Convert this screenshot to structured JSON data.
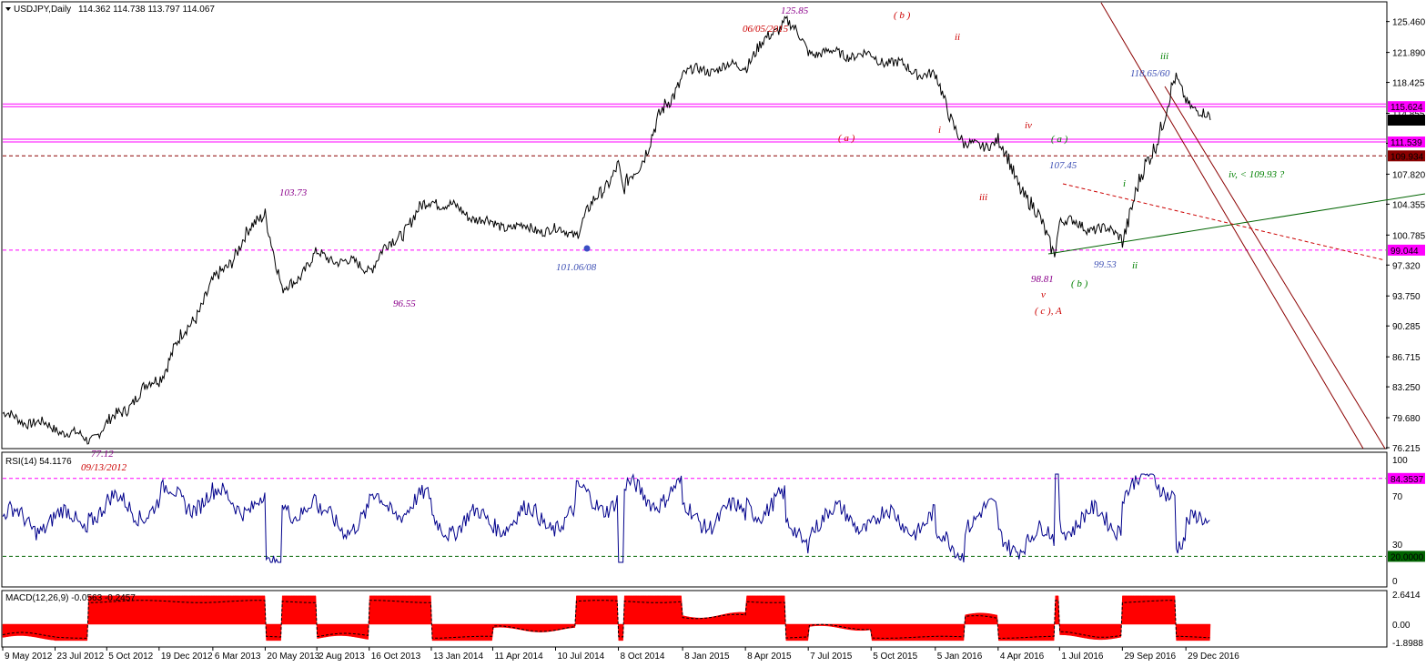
{
  "header": {
    "symbol_label": "USDJPY,Daily",
    "ohlc": "114.362 114.738 113.797 114.067"
  },
  "colors": {
    "price": "#000000",
    "rsi": "#00008b",
    "macd_fill": "#ff0000",
    "magenta": "#ff00ff",
    "darkred": "#8b0000",
    "green": "#006400"
  },
  "chart_data": [
    {
      "type": "line",
      "title": "USDJPY,Daily",
      "ylim": [
        76.215,
        127.0
      ],
      "yticks": [
        "125.460",
        "121.890",
        "118.425",
        "114.855",
        "111.390",
        "107.820",
        "104.355",
        "100.785",
        "97.320",
        "93.750",
        "90.285",
        "86.715",
        "83.250",
        "79.680",
        "76.215"
      ],
      "xticks": [
        "9 May 2012",
        "23 Jul 2012",
        "5 Oct 2012",
        "19 Dec 2012",
        "6 Mar 2013",
        "20 May 2013",
        "2 Aug 2013",
        "16 Oct 2013",
        "13 Jan 2014",
        "11 Apr 2014",
        "10 Jul 2014",
        "8 Oct 2014",
        "8 Jan 2015",
        "8 Apr 2015",
        "7 Jul 2015",
        "5 Oct 2015",
        "5 Jan 2016",
        "4 Apr 2016",
        "1 Jul 2016",
        "29 Sep 2016",
        "29 Dec 2016"
      ],
      "series": [
        {
          "x": [
            "9 May 2012",
            "23 Jul 2012",
            "9 Sep 2012",
            "5 Oct 2012",
            "19 Dec 2012",
            "6 Mar 2013",
            "20 May 2013",
            "13 Jun 2013",
            "2 Aug 2013",
            "16 Oct 2013",
            "13 Jan 2014",
            "11 Apr 2014",
            "8 Aug 2014",
            "8 Oct 2014",
            "15 Oct 2014",
            "8 Jan 2015",
            "8 Apr 2015",
            "5 Jun 2015",
            "7 Jul 2015",
            "5 Oct 2015",
            "5 Jan 2016",
            "15 Feb 2016",
            "4 Apr 2016",
            "24 Jun 2016",
            "1 Jul 2016",
            "29 Sep 2016",
            "15 Dec 2016",
            "29 Dec 2016",
            "2 Feb 2017"
          ],
          "values": [
            80.0,
            78.5,
            77.12,
            78.8,
            84.5,
            95.0,
            103.73,
            94.0,
            98.5,
            97.0,
            105.0,
            102.0,
            101.06,
            109.0,
            105.5,
            119.5,
            120.5,
            125.85,
            122.0,
            121.5,
            119.0,
            111.0,
            111.5,
            99.0,
            102.5,
            100.8,
            118.65,
            116.5,
            114.067
          ]
        }
      ],
      "horizontal_levels": [
        {
          "value": 115.624,
          "label": "115.624",
          "color": "#ff00ff",
          "style": "solid"
        },
        {
          "value": 114.067,
          "label": "114.067",
          "color": "#000000",
          "style": "marker"
        },
        {
          "value": 111.539,
          "label": "111.539",
          "color": "#ff00ff",
          "style": "solid"
        },
        {
          "value": 109.934,
          "label": "109.934",
          "color": "#8b0000",
          "style": "dashed"
        },
        {
          "value": 99.044,
          "label": "99.044",
          "color": "#ff00ff",
          "style": "dashed"
        }
      ],
      "annotations": [
        {
          "text": "125.85",
          "color": "#8b008b"
        },
        {
          "text": "06/05/2015",
          "color": "#cc0000"
        },
        {
          "text": "( b )",
          "color": "#cc0000"
        },
        {
          "text": "ii",
          "color": "#cc0000"
        },
        {
          "text": "( a )",
          "color": "#cc0000"
        },
        {
          "text": "i",
          "color": "#cc0000"
        },
        {
          "text": "iv",
          "color": "#cc0000"
        },
        {
          "text": "iii",
          "color": "#cc0000"
        },
        {
          "text": "( a )",
          "color": "#008000"
        },
        {
          "text": "107.45",
          "color": "#3f51b5"
        },
        {
          "text": "iii",
          "color": "#008000"
        },
        {
          "text": "118.65/60",
          "color": "#3f51b5"
        },
        {
          "text": "iv, < 109.93 ?",
          "color": "#008000"
        },
        {
          "text": "i",
          "color": "#008000"
        },
        {
          "text": "ii",
          "color": "#008000"
        },
        {
          "text": "99.53",
          "color": "#3f51b5"
        },
        {
          "text": "98.81",
          "color": "#8b008b"
        },
        {
          "text": "( b )",
          "color": "#008000"
        },
        {
          "text": "v",
          "color": "#cc0000"
        },
        {
          "text": "( c ), A",
          "color": "#cc0000"
        },
        {
          "text": "103.73",
          "color": "#8b008b"
        },
        {
          "text": "96.55",
          "color": "#8b008b"
        },
        {
          "text": "101.06/08",
          "color": "#3f51b5"
        },
        {
          "text": "77.12",
          "color": "#8b008b"
        },
        {
          "text": "09/13/2012",
          "color": "#cc0000"
        }
      ]
    },
    {
      "type": "line",
      "title": "RSI(14) 54.1176",
      "ylim": [
        0,
        100
      ],
      "yticks": [
        "100",
        "70",
        "30",
        "0"
      ],
      "levels": [
        {
          "value": 84.3537,
          "label": "84.3537",
          "color": "#ff00ff"
        },
        {
          "value": 20.0,
          "label": "20.0000",
          "color": "#006400"
        }
      ]
    },
    {
      "type": "area",
      "title": "MACD(12,26,9) -0.0563 -0.2457",
      "ylim": [
        -1.8988,
        2.6414
      ],
      "yticks": [
        "2.6414",
        "0.00",
        "-1.8988"
      ]
    }
  ]
}
